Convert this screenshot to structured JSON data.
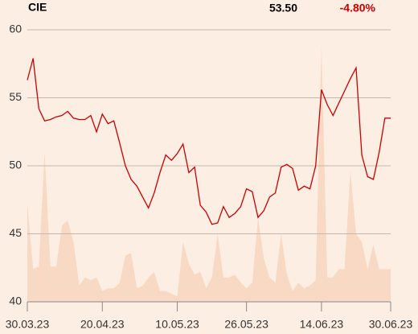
{
  "chart_data": {
    "type": "line",
    "title": "CIE",
    "last_price": "53.50",
    "change": "-4.80%",
    "categories": [
      "30.03.23",
      null,
      null,
      null,
      null,
      null,
      null,
      null,
      null,
      null,
      null,
      null,
      null,
      "20.04.23",
      null,
      null,
      null,
      null,
      null,
      null,
      null,
      null,
      null,
      null,
      null,
      null,
      "10.05.23",
      null,
      null,
      null,
      null,
      null,
      null,
      null,
      null,
      null,
      null,
      null,
      "26.05.23",
      null,
      null,
      null,
      null,
      null,
      null,
      null,
      null,
      null,
      null,
      null,
      null,
      "14.06.23",
      null,
      null,
      null,
      null,
      null,
      null,
      null,
      null,
      null,
      null,
      null,
      "30.06.23"
    ],
    "series": [
      {
        "name": "Price",
        "color": "#cc0000",
        "values": [
          56.3,
          57.9,
          54.2,
          53.3,
          53.4,
          53.6,
          53.7,
          54.0,
          53.5,
          53.4,
          53.4,
          53.7,
          52.5,
          53.8,
          53.1,
          53.3,
          51.7,
          50.0,
          49.0,
          48.5,
          47.7,
          46.9,
          48.0,
          49.5,
          50.8,
          50.4,
          50.9,
          51.6,
          49.5,
          49.9,
          47.1,
          46.6,
          45.7,
          45.8,
          47.0,
          46.2,
          46.5,
          47.0,
          48.3,
          48.1,
          46.2,
          46.7,
          47.7,
          48.0,
          49.9,
          50.1,
          49.8,
          48.2,
          48.5,
          48.3,
          50.0,
          55.6,
          54.5,
          53.7,
          54.6,
          55.5,
          56.4,
          57.2,
          50.8,
          49.2,
          49.0,
          51.0,
          53.5,
          53.5
        ]
      },
      {
        "name": "Volume",
        "color": "#f8d9c4",
        "axis": "y2",
        "values": [
          36,
          12,
          13,
          55,
          13,
          13,
          28,
          30,
          22,
          6,
          9,
          8,
          9,
          4,
          5,
          5,
          7,
          17,
          18,
          5,
          6,
          9,
          11,
          4,
          4,
          3,
          2,
          22,
          14,
          10,
          11,
          5,
          9,
          25,
          9,
          9,
          10,
          7,
          5,
          7,
          31,
          16,
          9,
          7,
          25,
          10,
          4,
          7,
          5,
          6,
          8,
          94,
          9,
          9,
          12,
          12,
          48,
          25,
          22,
          12,
          21,
          12,
          12,
          12
        ]
      }
    ],
    "ylim": [
      40,
      60
    ],
    "yticks": [
      40,
      45,
      50,
      55,
      60
    ],
    "y2lim": [
      0,
      100
    ],
    "grid": true
  }
}
